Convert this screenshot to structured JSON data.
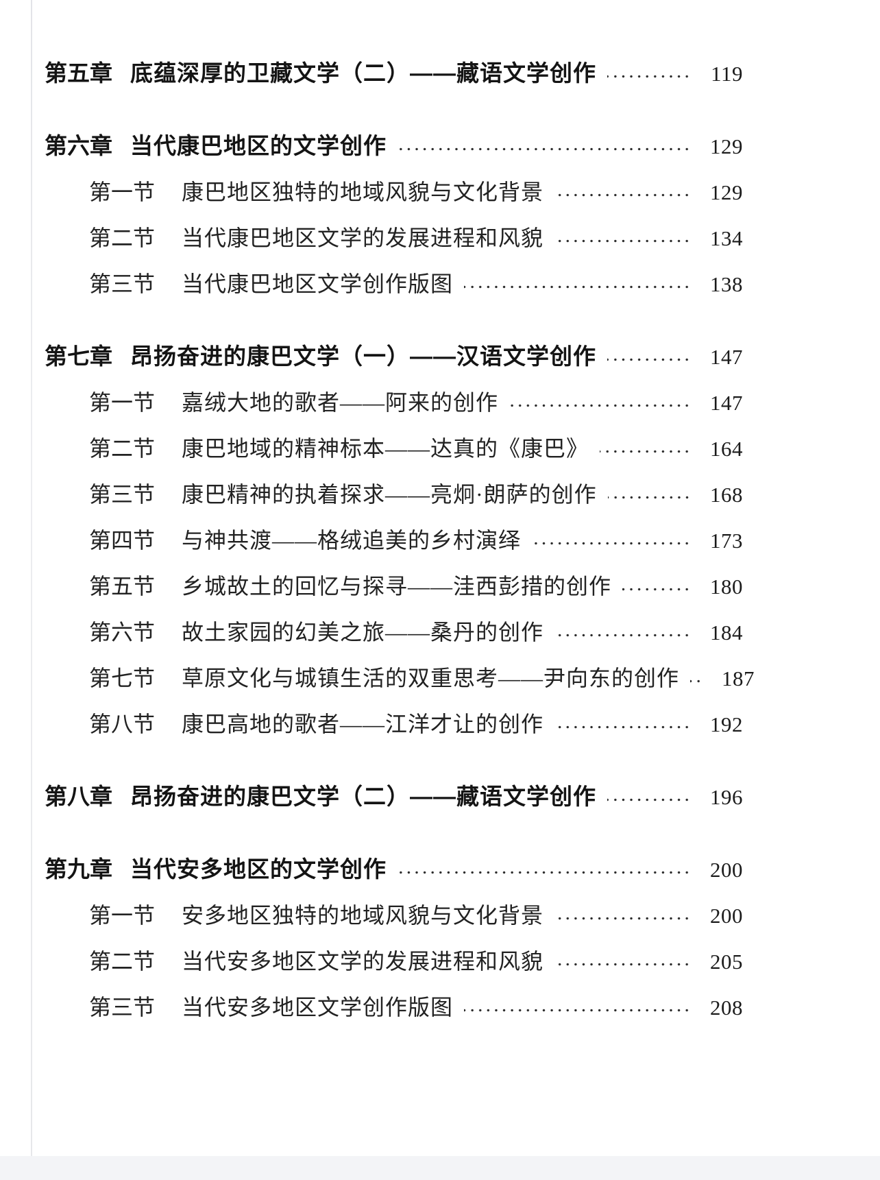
{
  "page": {
    "kind": "book-table-of-contents-scan",
    "background_color": "#f6f7f9",
    "paper_color": "#ffffff",
    "text_color": "#1f1f1f",
    "dot_leader_color": "#2c2c2c"
  },
  "toc": {
    "entries": [
      {
        "level": "chapter",
        "label": "第五章",
        "title": "底蕴深厚的卫藏文学（二）——藏语文学创作",
        "page": "119"
      },
      {
        "level": "chapter",
        "label": "第六章",
        "title": "当代康巴地区的文学创作",
        "page": "129"
      },
      {
        "level": "section",
        "label": "第一节",
        "title": "康巴地区独特的地域风貌与文化背景",
        "page": "129"
      },
      {
        "level": "section",
        "label": "第二节",
        "title": "当代康巴地区文学的发展进程和风貌",
        "page": "134"
      },
      {
        "level": "section",
        "label": "第三节",
        "title": "当代康巴地区文学创作版图",
        "page": "138"
      },
      {
        "level": "chapter",
        "label": "第七章",
        "title": "昂扬奋进的康巴文学（一）——汉语文学创作",
        "page": "147"
      },
      {
        "level": "section",
        "label": "第一节",
        "title": "嘉绒大地的歌者——阿来的创作",
        "page": "147"
      },
      {
        "level": "section",
        "label": "第二节",
        "title": "康巴地域的精神标本——达真的《康巴》",
        "page": "164"
      },
      {
        "level": "section",
        "label": "第三节",
        "title": "康巴精神的执着探求——亮炯·朗萨的创作",
        "page": "168"
      },
      {
        "level": "section",
        "label": "第四节",
        "title": "与神共渡——格绒追美的乡村演绎",
        "page": "173"
      },
      {
        "level": "section",
        "label": "第五节",
        "title": "乡城故土的回忆与探寻——洼西彭措的创作",
        "page": "180"
      },
      {
        "level": "section",
        "label": "第六节",
        "title": "故土家园的幻美之旅——桑丹的创作",
        "page": "184"
      },
      {
        "level": "section",
        "label": "第七节",
        "title": "草原文化与城镇生活的双重思考——尹向东的创作",
        "page": "187"
      },
      {
        "level": "section",
        "label": "第八节",
        "title": "康巴高地的歌者——江洋才让的创作",
        "page": "192"
      },
      {
        "level": "chapter",
        "label": "第八章",
        "title": "昂扬奋进的康巴文学（二）——藏语文学创作",
        "page": "196"
      },
      {
        "level": "chapter",
        "label": "第九章",
        "title": "当代安多地区的文学创作",
        "page": "200"
      },
      {
        "level": "section",
        "label": "第一节",
        "title": "安多地区独特的地域风貌与文化背景",
        "page": "200"
      },
      {
        "level": "section",
        "label": "第二节",
        "title": "当代安多地区文学的发展进程和风貌",
        "page": "205"
      },
      {
        "level": "section",
        "label": "第三节",
        "title": "当代安多地区文学创作版图",
        "page": "208"
      }
    ]
  }
}
